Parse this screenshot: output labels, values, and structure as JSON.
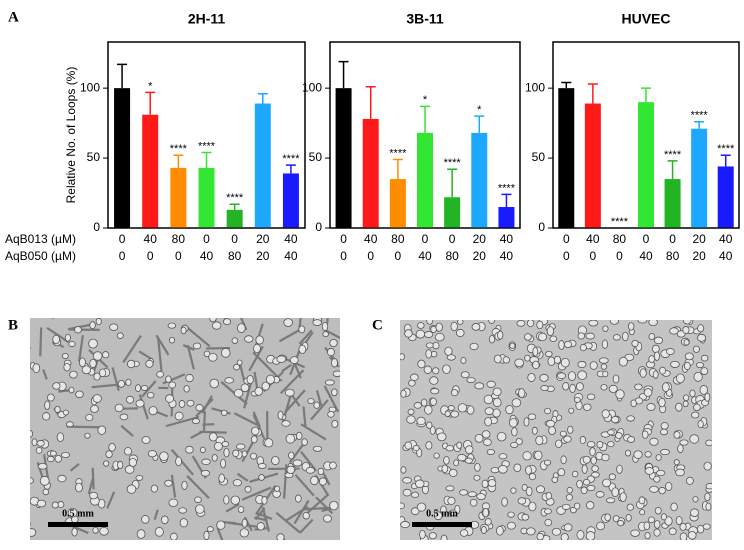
{
  "figure": {
    "panel_a": "A",
    "panel_b": "B",
    "panel_c": "C"
  },
  "chart_data": [
    {
      "type": "bar",
      "title": "2H-11",
      "ylabel": "Relative No. of Loops (%)",
      "row_labels": [
        "AqB013 (µM)",
        "AqB050 (µM)"
      ],
      "category_rows": [
        [
          0,
          40,
          80,
          0,
          0,
          20,
          40
        ],
        [
          0,
          0,
          0,
          40,
          80,
          20,
          40
        ]
      ],
      "values": [
        100,
        81,
        43,
        43,
        13,
        89,
        39
      ],
      "errors": [
        17,
        16,
        9,
        11,
        4,
        7,
        6
      ],
      "annotations": [
        null,
        "*",
        "****",
        "****",
        "****",
        null,
        "****"
      ],
      "colors": [
        "#000000",
        "#ff1a1a",
        "#ff8c00",
        "#33e633",
        "#22b422",
        "#1ea7ff",
        "#1a1aff"
      ],
      "ylim": [
        0,
        133
      ],
      "yticks": [
        0,
        50,
        100
      ]
    },
    {
      "type": "bar",
      "title": "3B-11",
      "category_rows": [
        [
          0,
          40,
          80,
          0,
          0,
          20,
          40
        ],
        [
          0,
          0,
          0,
          40,
          80,
          20,
          40
        ]
      ],
      "values": [
        100,
        78,
        35,
        68,
        22,
        68,
        15
      ],
      "errors": [
        19,
        23,
        14,
        19,
        20,
        12,
        9
      ],
      "annotations": [
        null,
        null,
        "****",
        "*",
        "****",
        "*",
        "****"
      ],
      "colors": [
        "#000000",
        "#ff1a1a",
        "#ff8c00",
        "#33e633",
        "#22b422",
        "#1ea7ff",
        "#1a1aff"
      ],
      "ylim": [
        0,
        133
      ],
      "yticks": [
        0,
        50,
        100
      ]
    },
    {
      "type": "bar",
      "title": "HUVEC",
      "category_rows": [
        [
          0,
          40,
          80,
          0,
          0,
          20,
          40
        ],
        [
          0,
          0,
          0,
          40,
          80,
          20,
          40
        ]
      ],
      "values": [
        100,
        89,
        0,
        90,
        35,
        71,
        44
      ],
      "errors": [
        4,
        14,
        null,
        10,
        13,
        5,
        8
      ],
      "annotations": [
        null,
        null,
        "****",
        null,
        "****",
        "****",
        "****"
      ],
      "colors": [
        "#000000",
        "#ff1a1a",
        "#ff8c00",
        "#33e633",
        "#22b422",
        "#1ea7ff",
        "#1a1aff"
      ],
      "ylim": [
        0,
        133
      ],
      "yticks": [
        0,
        50,
        100
      ]
    }
  ],
  "images": [
    {
      "scale_label": "0.5 mm"
    },
    {
      "scale_label": "0.5 mm"
    }
  ]
}
